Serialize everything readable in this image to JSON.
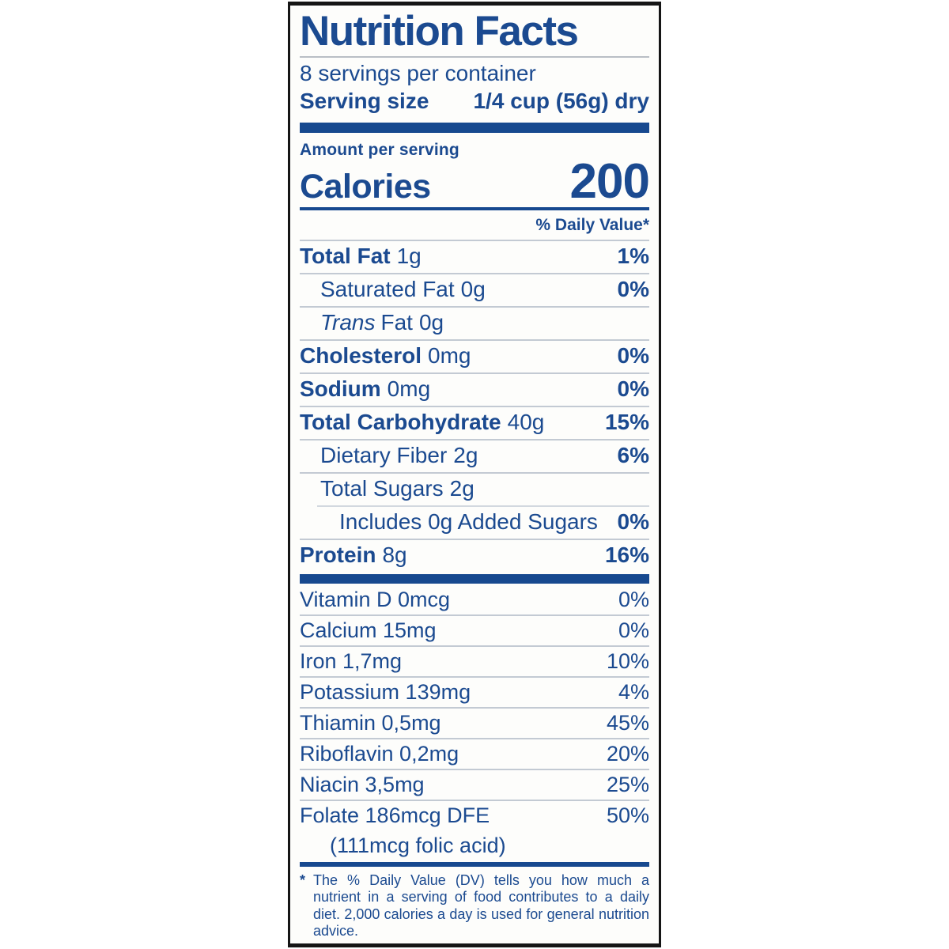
{
  "colors": {
    "navy": "#1b4a90",
    "bar_blue": "#17498f"
  },
  "label": {
    "title": "Nutrition Facts",
    "servings_per_container": "8 servings per container",
    "serving_size": {
      "label": "Serving size",
      "value": "1/4 cup (56g) dry"
    },
    "amount_per_serving": "Amount per serving",
    "calories": {
      "label": "Calories",
      "value": "200"
    },
    "daily_value_header": "% Daily Value*",
    "nutrients": [
      {
        "name": "Total Fat",
        "amount": "1g",
        "dv": "1%",
        "bold": true,
        "indent": 0
      },
      {
        "name": "Saturated Fat",
        "amount": "0g",
        "dv": "0%",
        "bold": false,
        "indent": 1
      },
      {
        "name_italic": "Trans",
        "name_rest": "Fat",
        "amount": "0g",
        "dv": "",
        "bold": false,
        "indent": 1
      },
      {
        "name": "Cholesterol",
        "amount": "0mg",
        "dv": "0%",
        "bold": true,
        "indent": 0
      },
      {
        "name": "Sodium",
        "amount": "0mg",
        "dv": "0%",
        "bold": true,
        "indent": 0
      },
      {
        "name": "Total Carbohydrate",
        "amount": "40g",
        "dv": "15%",
        "bold": true,
        "indent": 0
      },
      {
        "name": "Dietary Fiber",
        "amount": "2g",
        "dv": "6%",
        "bold": false,
        "indent": 1
      },
      {
        "name": "Total Sugars",
        "amount": "2g",
        "dv": "",
        "bold": false,
        "indent": 1
      },
      {
        "name": "Includes 0g Added Sugars",
        "amount": "",
        "dv": "0%",
        "bold": false,
        "indent": 2,
        "sep_indent": true
      },
      {
        "name": "Protein",
        "amount": "8g",
        "dv": "16%",
        "bold": true,
        "indent": 0
      }
    ],
    "micronutrients": [
      {
        "name": "Vitamin D 0mcg",
        "dv": "0%"
      },
      {
        "name": "Calcium 15mg",
        "dv": "0%"
      },
      {
        "name": "Iron 1,7mg",
        "dv": "10%"
      },
      {
        "name": "Potassium 139mg",
        "dv": "4%"
      },
      {
        "name": "Thiamin 0,5mg",
        "dv": "45%"
      },
      {
        "name": "Riboflavin 0,2mg",
        "dv": "20%"
      },
      {
        "name": "Niacin 3,5mg",
        "dv": "25%"
      },
      {
        "name": "Folate 186mcg DFE",
        "dv": "50%",
        "sub": "(111mcg folic acid)"
      }
    ],
    "footnote": {
      "marker": "*",
      "text": "The % Daily Value (DV) tells you how much a nutrient in a serving of food contributes to a daily diet. 2,000 calories a day is used for general nutrition advice."
    }
  }
}
